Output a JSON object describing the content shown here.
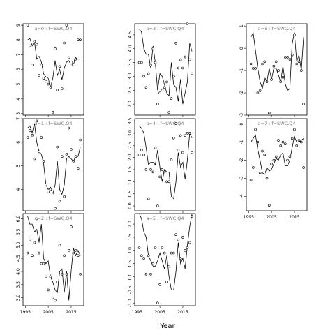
{
  "chart_data": {
    "type": "line",
    "xlabel": "Year",
    "x_ticks": [
      1995,
      2005,
      2015
    ],
    "panels": [
      {
        "title": "a=0 : f=SWC.Q4",
        "ylim": [
          2.9,
          9.1
        ],
        "y_ticks": [
          3,
          4,
          5,
          6,
          7,
          8,
          9
        ],
        "line_years": [
          1996,
          1997,
          1998,
          1999,
          2000,
          2001,
          2002,
          2003,
          2004,
          2005,
          2006,
          2007,
          2008,
          2009,
          2010,
          2011,
          2012,
          2013,
          2014,
          2015,
          2016,
          2017,
          2018,
          2019
        ],
        "line_values": [
          8.0,
          8.1,
          7.6,
          7.9,
          6.7,
          6.9,
          6.5,
          5.7,
          5.5,
          5.4,
          4.8,
          5.4,
          6.6,
          5.6,
          6.0,
          5.3,
          6.1,
          6.5,
          6.6,
          6.3,
          6.5,
          6.8,
          6.7,
          6.7
        ],
        "point_years": [
          1996,
          1997,
          1998,
          1999,
          2000,
          2001,
          2002,
          2003,
          2004,
          2005,
          2006,
          2007,
          2008,
          2009,
          2010,
          2011,
          2012,
          2013,
          2014,
          2015,
          2016,
          2017,
          2018,
          2019
        ],
        "point_values": [
          9.0,
          7.6,
          6.3,
          7.9,
          7.7,
          5.6,
          6.3,
          5.4,
          5.2,
          5.0,
          4.8,
          3.1,
          7.4,
          4.6,
          6.2,
          4.7,
          7.8,
          9.0,
          6.8,
          6.3,
          6.5,
          6.7,
          8.0,
          8.0
        ]
      },
      {
        "title": "a=1 : f=SWC.Q4",
        "ylim": [
          3.1,
          7.0
        ],
        "y_ticks": [
          4,
          5,
          6,
          7
        ],
        "line_years": [
          1996,
          1997,
          1998,
          1999,
          2000,
          2001,
          2002,
          2003,
          2004,
          2005,
          2006,
          2007,
          2008,
          2009,
          2010,
          2011,
          2012,
          2013,
          2014,
          2015,
          2016,
          2017,
          2018,
          2019
        ],
        "line_values": [
          6.6,
          6.7,
          6.4,
          6.8,
          6.0,
          5.6,
          5.5,
          5.1,
          4.2,
          4.0,
          4.1,
          3.8,
          4.2,
          5.2,
          4.0,
          3.8,
          4.2,
          5.3,
          5.4,
          5.3,
          5.2,
          5.4,
          5.4,
          5.8
        ],
        "point_years": [
          1996,
          1997,
          1998,
          1999,
          2000,
          2001,
          2002,
          2003,
          2004,
          2005,
          2006,
          2007,
          2008,
          2009,
          2010,
          2011,
          2012,
          2013,
          2014,
          2015,
          2016,
          2017,
          2018,
          2019
        ],
        "point_values": [
          6.2,
          6.5,
          6.3,
          5.3,
          6.9,
          5.6,
          6.2,
          5.2,
          4.2,
          3.9,
          4.0,
          3.8,
          3.2,
          5.8,
          3.5,
          5.4,
          3.7,
          5.5,
          6.6,
          5.7,
          5.2,
          5.4,
          4.9,
          6.1
        ]
      },
      {
        "title": "a=2 : f=SWC.Q4",
        "ylim": [
          2.7,
          6.2
        ],
        "y_ticks": [
          3.0,
          3.5,
          4.0,
          4.5,
          5.0,
          5.5,
          6.0
        ],
        "line_years": [
          1996,
          1997,
          1998,
          1999,
          2000,
          2001,
          2002,
          2003,
          2004,
          2005,
          2006,
          2007,
          2008,
          2009,
          2010,
          2011,
          2012,
          2013,
          2014,
          2015,
          2016,
          2017,
          2018,
          2019
        ],
        "line_values": [
          6.1,
          5.8,
          5.8,
          5.5,
          5.6,
          5.1,
          5.8,
          4.5,
          4.3,
          4.4,
          3.8,
          3.6,
          3.3,
          3.2,
          4.0,
          4.1,
          3.2,
          4.0,
          2.9,
          4.0,
          4.9,
          4.6,
          4.8,
          4.6
        ],
        "point_years": [
          1996,
          1997,
          1998,
          1999,
          2000,
          2001,
          2002,
          2003,
          2004,
          2005,
          2006,
          2007,
          2008,
          2009,
          2010,
          2011,
          2012,
          2013,
          2014,
          2015,
          2016,
          2017,
          2018,
          2019
        ],
        "point_values": [
          4.7,
          5.2,
          4.6,
          5.1,
          6.0,
          4.7,
          4.3,
          4.3,
          3.8,
          3.3,
          3.8,
          3.0,
          2.9,
          3.6,
          5.0,
          3.9,
          4.6,
          3.9,
          4.8,
          5.7,
          4.7,
          4.8,
          4.6,
          3.9
        ]
      },
      {
        "title": "a=3 : f=SWC.Q4",
        "ylim": [
          1.6,
          4.9
        ],
        "y_ticks": [
          2.0,
          2.5,
          3.0,
          3.5,
          4.0,
          4.5
        ],
        "line_years": [
          1996,
          1997,
          1998,
          1999,
          2000,
          2001,
          2002,
          2003,
          2004,
          2005,
          2006,
          2007,
          2008,
          2009,
          2010,
          2011,
          2012,
          2013,
          2014,
          2015,
          2016,
          2017,
          2018,
          2019
        ],
        "line_values": [
          4.7,
          4.6,
          4.0,
          3.8,
          3.8,
          3.3,
          4.1,
          3.5,
          2.5,
          3.1,
          3.0,
          2.7,
          2.4,
          2.3,
          3.5,
          2.7,
          2.6,
          2.1,
          2.9,
          2.0,
          2.4,
          2.8,
          4.2,
          3.9
        ],
        "point_years": [
          1996,
          1997,
          1998,
          1999,
          2000,
          2001,
          2002,
          2003,
          2004,
          2005,
          2006,
          2007,
          2008,
          2009,
          2010,
          2011,
          2012,
          2013,
          2014,
          2015,
          2016,
          2017,
          2018,
          2019
        ],
        "point_values": [
          3.5,
          3.5,
          3.0,
          2.6,
          3.1,
          3.4,
          4.0,
          3.5,
          2.0,
          2.4,
          2.5,
          2.6,
          2.8,
          1.7,
          2.2,
          3.0,
          4.2,
          3.3,
          3.6,
          3.3,
          3.7,
          4.9,
          3.6,
          3.1
        ]
      },
      {
        "title": "a=4 : f=SWC.Q4",
        "ylim": [
          -0.2,
          3.6
        ],
        "y_ticks": [
          0.0,
          0.5,
          1.0,
          1.5,
          2.0,
          2.5,
          3.0,
          3.5
        ],
        "line_years": [
          1996,
          1997,
          1998,
          1999,
          2000,
          2001,
          2002,
          2003,
          2004,
          2005,
          2006,
          2007,
          2008,
          2009,
          2010,
          2011,
          2012,
          2013,
          2014,
          2015,
          2016,
          2017,
          2018,
          2019
        ],
        "line_values": [
          3.3,
          3.2,
          3.0,
          2.4,
          1.7,
          1.8,
          1.8,
          1.7,
          2.3,
          1.6,
          1.0,
          1.5,
          1.4,
          1.4,
          0.4,
          0.3,
          1.0,
          2.2,
          1.6,
          1.8,
          1.1,
          1.9,
          3.0,
          2.8
        ],
        "point_years": [
          1996,
          1997,
          1998,
          1999,
          2000,
          2001,
          2002,
          2003,
          2004,
          2005,
          2006,
          2007,
          2008,
          2009,
          2010,
          2011,
          2012,
          2013,
          2014,
          2015,
          2016,
          2017,
          2018,
          2019
        ],
        "point_values": [
          2.1,
          2.3,
          2.1,
          1.5,
          0.3,
          1.5,
          1.4,
          2.4,
          0.0,
          1.2,
          1.5,
          1.4,
          1.0,
          1.0,
          1.9,
          2.8,
          3.4,
          2.3,
          2.9,
          2.2,
          2.9,
          3.0,
          3.0,
          2.2
        ]
      },
      {
        "title": "a=5 : f=SWC.Q4",
        "ylim": [
          -1.1,
          2.4
        ],
        "y_ticks": [
          -1.0,
          -0.5,
          0.0,
          0.5,
          1.0,
          1.5,
          2.0
        ],
        "line_years": [
          1996,
          1997,
          1998,
          1999,
          2000,
          2001,
          2002,
          2003,
          2004,
          2005,
          2006,
          2007,
          2008,
          2009,
          2010,
          2011,
          2012,
          2013,
          2014,
          2015,
          2016,
          2017,
          2018,
          2019
        ],
        "line_values": [
          2.4,
          2.2,
          1.7,
          1.5,
          0.8,
          0.6,
          0.4,
          0.4,
          0.6,
          0.9,
          0.6,
          0.3,
          0.8,
          0.0,
          -0.5,
          -0.5,
          0.2,
          1.3,
          0.5,
          0.7,
          0.3,
          1.2,
          1.9,
          2.4
        ],
        "point_years": [
          1996,
          1997,
          1998,
          1999,
          2000,
          2001,
          2002,
          2003,
          2004,
          2005,
          2006,
          2007,
          2008,
          2009,
          2010,
          2011,
          2012,
          2013,
          2014,
          2015,
          2016,
          2017,
          2018,
          2019
        ],
        "point_values": [
          1.1,
          0.8,
          0.7,
          0.1,
          0.8,
          0.1,
          0.5,
          1.1,
          -1.0,
          -0.3,
          1.1,
          0.9,
          -0.2,
          0.4,
          0.9,
          0.9,
          1.6,
          1.4,
          0.7,
          1.5,
          1.0,
          1.1,
          1.3,
          2.3
        ]
      },
      {
        "title": "a=6 : f=SWC.Q4",
        "ylim": [
          -3.0,
          1.1
        ],
        "y_ticks": [
          -3,
          -2,
          -1,
          0,
          1
        ],
        "line_years": [
          1996,
          1997,
          1998,
          1999,
          2000,
          2001,
          2002,
          2003,
          2004,
          2005,
          2006,
          2007,
          2008,
          2009,
          2010,
          2011,
          2012,
          2013,
          2014,
          2015,
          2016,
          2017,
          2018,
          2019
        ],
        "line_values": [
          0.5,
          0.7,
          -0.1,
          -0.9,
          -1.5,
          -1.8,
          -1.3,
          -1.5,
          -0.9,
          -1.4,
          -0.9,
          -0.9,
          -1.2,
          -1.5,
          -0.8,
          -1.6,
          -1.9,
          -1.8,
          0.2,
          0.7,
          -0.6,
          -0.3,
          -1.0,
          0.5
        ],
        "point_years": [
          1996,
          1997,
          1998,
          1999,
          2000,
          2001,
          2002,
          2003,
          2004,
          2005,
          2006,
          2007,
          2008,
          2009,
          2010,
          2011,
          2012,
          2013,
          2014,
          2015,
          2016,
          2017,
          2018,
          2019
        ],
        "point_values": [
          -0.7,
          -0.9,
          -0.9,
          -2.0,
          -1.9,
          -0.7,
          -0.6,
          -1.5,
          -2.9,
          -1.4,
          -0.8,
          -0.6,
          -1.0,
          -1.5,
          -1.3,
          -0.4,
          -0.4,
          -0.5,
          -0.3,
          0.6,
          -0.7,
          -0.6,
          -1.0,
          -2.5
        ]
      },
      {
        "title": "a=7 : f=SWC.Q4",
        "ylim": [
          -4.8,
          0.3
        ],
        "y_ticks": [
          -4,
          -3,
          -2,
          -1,
          0
        ],
        "line_years": [
          1996,
          1997,
          1998,
          1999,
          2000,
          2001,
          2002,
          2003,
          2004,
          2005,
          2006,
          2007,
          2008,
          2009,
          2010,
          2011,
          2012,
          2013,
          2014,
          2015,
          2016,
          2017,
          2018,
          2019
        ],
        "line_values": [
          -1.0,
          -0.8,
          -0.6,
          -1.4,
          -2.0,
          -2.7,
          -2.8,
          -2.4,
          -2.6,
          -2.5,
          -2.2,
          -1.9,
          -2.0,
          -1.7,
          -1.6,
          -2.3,
          -2.3,
          -2.0,
          -1.3,
          -0.7,
          -1.0,
          -1.0,
          -0.9,
          -0.8
        ],
        "point_years": [
          1996,
          1997,
          1998,
          1999,
          2000,
          2001,
          2002,
          2003,
          2004,
          2005,
          2006,
          2007,
          2008,
          2009,
          2010,
          2011,
          2012,
          2013,
          2014,
          2015,
          2016,
          2017,
          2018,
          2019
        ],
        "point_values": [
          -3.1,
          -2.4,
          -0.3,
          -1.0,
          -2.7,
          -1.5,
          -1.7,
          -3.0,
          -4.5,
          -2.2,
          -2.0,
          -1.8,
          -0.9,
          -1.2,
          -1.0,
          -1.1,
          -2.0,
          -1.8,
          -0.8,
          -0.3,
          -1.2,
          -0.9,
          -1.0,
          -2.4
        ]
      }
    ]
  }
}
